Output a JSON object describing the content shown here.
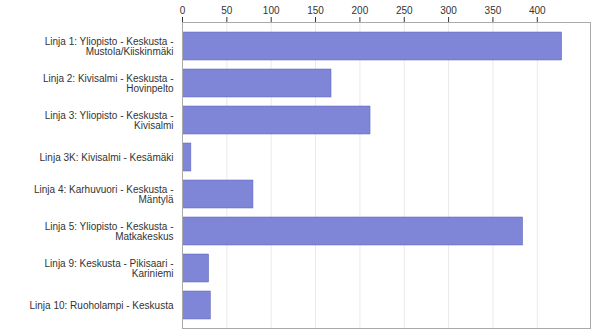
{
  "chart_data": {
    "type": "bar",
    "orientation": "horizontal",
    "categories": [
      "Linja 1: Yliopisto - Keskusta -\nMustola/Kiiskinmäki",
      "Linja 2: Kivisalmi - Keskusta -\nHovinpelto",
      "Linja 3: Yliopisto - Keskusta -\nKivisalmi",
      "Linja 3K: Kivisalmi - Kesämäki",
      "Linja 4: Karhuvuori - Keskusta -\nMäntylä",
      "Linja 5: Yliopisto - Keskusta -\nMatkakeskus",
      "Linja 9: Keskusta - Pikisaari -\nKariniemi",
      "Linja 10: Ruoholampi - Keskusta"
    ],
    "values": [
      428,
      168,
      212,
      10,
      80,
      384,
      30,
      32
    ],
    "color": "#7f86d8",
    "xlim": [
      0,
      460
    ],
    "xticks": [
      0,
      50,
      100,
      150,
      200,
      250,
      300,
      350,
      400
    ],
    "grid": true
  }
}
